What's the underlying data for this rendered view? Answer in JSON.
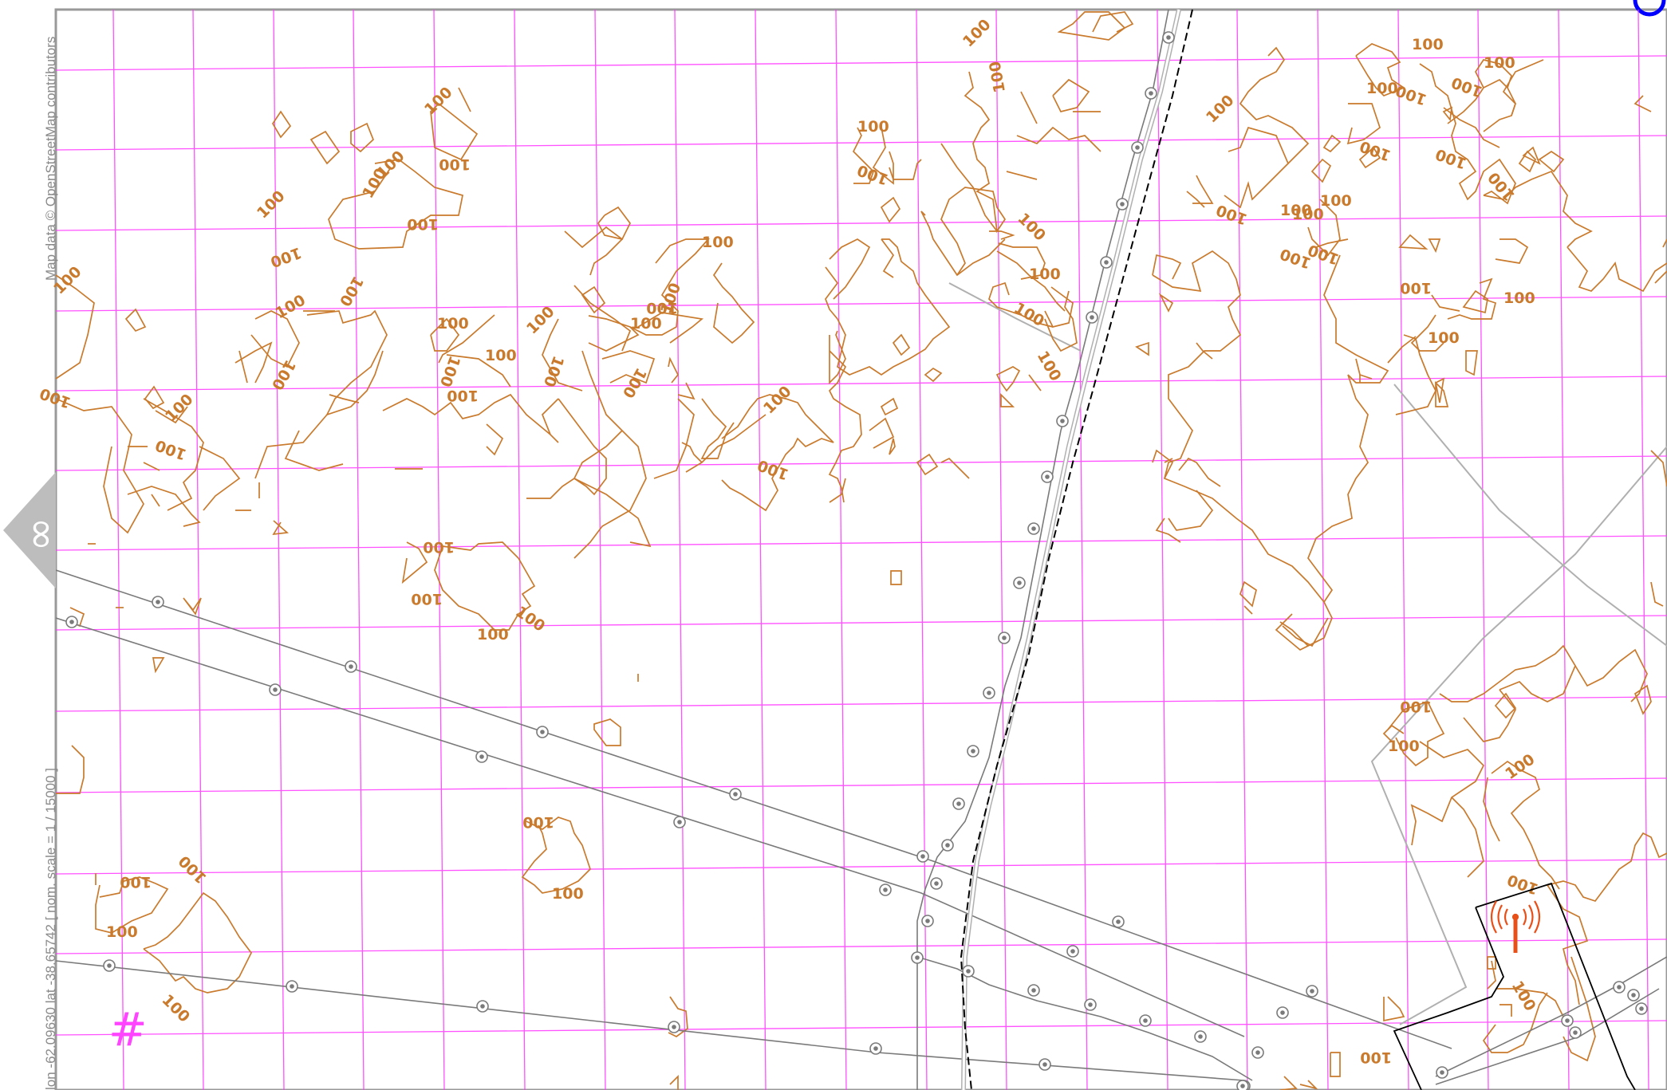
{
  "map": {
    "attribution": "Map data © OpenStreetMap contributors",
    "coordinates_text": "lon -62.09630 lat -38.65742 [ nom. scale = 1 / 15000 ]",
    "contour_label": "100",
    "hash_symbol": "#",
    "zoom_tab_glyph": "∞",
    "colors": {
      "grid": "#ff33ff",
      "contour": "#c97a2c",
      "power_line": "#7a7a7a",
      "track": "#000000",
      "paths": "#b0b0b0",
      "antenna": "#e8501a",
      "border": "#999999",
      "corner_mark": "#0000ff"
    },
    "icons": [
      "power-tower-icon",
      "antenna-icon",
      "zoom-tab-icon"
    ]
  }
}
